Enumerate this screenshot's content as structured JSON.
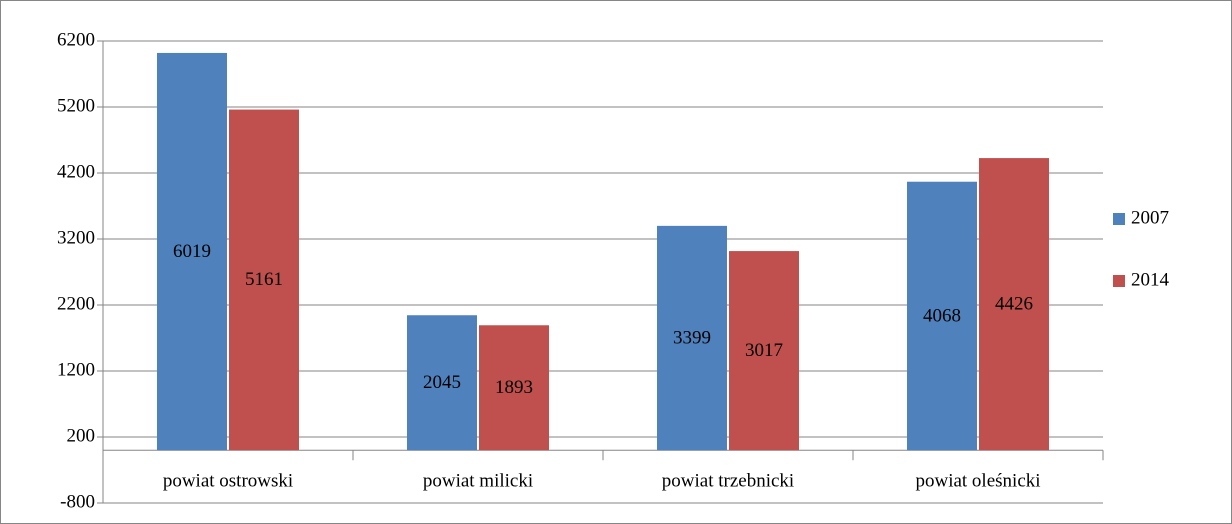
{
  "chart_data": {
    "type": "bar",
    "categories": [
      "powiat ostrowski",
      "powiat milicki",
      "powiat trzebnicki",
      "powiat oleśnicki"
    ],
    "series": [
      {
        "name": "2007",
        "color": "#4f81bd",
        "values": [
          6019,
          2045,
          3399,
          4068
        ]
      },
      {
        "name": "2014",
        "color": "#c0504d",
        "values": [
          5161,
          1893,
          3017,
          4426
        ]
      }
    ],
    "ylim": [
      -800,
      6200
    ],
    "yticks": [
      -800,
      200,
      1200,
      2200,
      3200,
      4200,
      5200,
      6200
    ],
    "grid": true,
    "legend": "right"
  }
}
